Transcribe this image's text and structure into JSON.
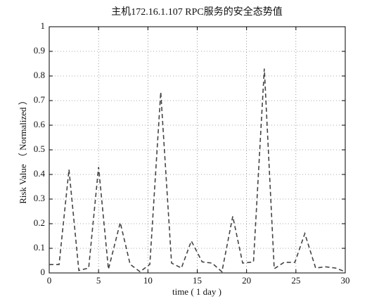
{
  "chart_data": {
    "type": "line",
    "title": "主机172.16.1.107 RPC服务的安全态势值",
    "x_label": "time ( 1 day )",
    "y_label": "Risk Value （ Normalized ）",
    "x": [
      0,
      1,
      2,
      3,
      4,
      5,
      6,
      7.2,
      8.2,
      9.2,
      10.2,
      11.3,
      12.4,
      13.4,
      14.4,
      15.5,
      16.5,
      17.5,
      18.6,
      19.6,
      20.7,
      21.8,
      22.8,
      23.8,
      24.9,
      25.9,
      27,
      28,
      29,
      30
    ],
    "series": [
      {
        "color": "#444444",
        "values": [
          0.034,
          0.034,
          0.42,
          0.01,
          0.02,
          0.43,
          0.015,
          0.205,
          0.035,
          0.005,
          0.035,
          0.735,
          0.04,
          0.02,
          0.13,
          0.045,
          0.04,
          0.005,
          0.23,
          0.04,
          0.045,
          0.83,
          0.017,
          0.043,
          0.043,
          0.16,
          0.02,
          0.025,
          0.02,
          0.005
        ]
      }
    ],
    "xlim": [
      0,
      30
    ],
    "xticks": [
      0,
      5,
      10,
      15,
      20,
      25,
      30
    ],
    "ylim": [
      0,
      1
    ],
    "yticks": [
      0,
      0.1,
      0.2,
      0.3,
      0.4,
      0.5,
      0.6,
      0.7,
      0.8,
      0.9,
      1
    ],
    "grid": true,
    "line_style": "dashed"
  }
}
